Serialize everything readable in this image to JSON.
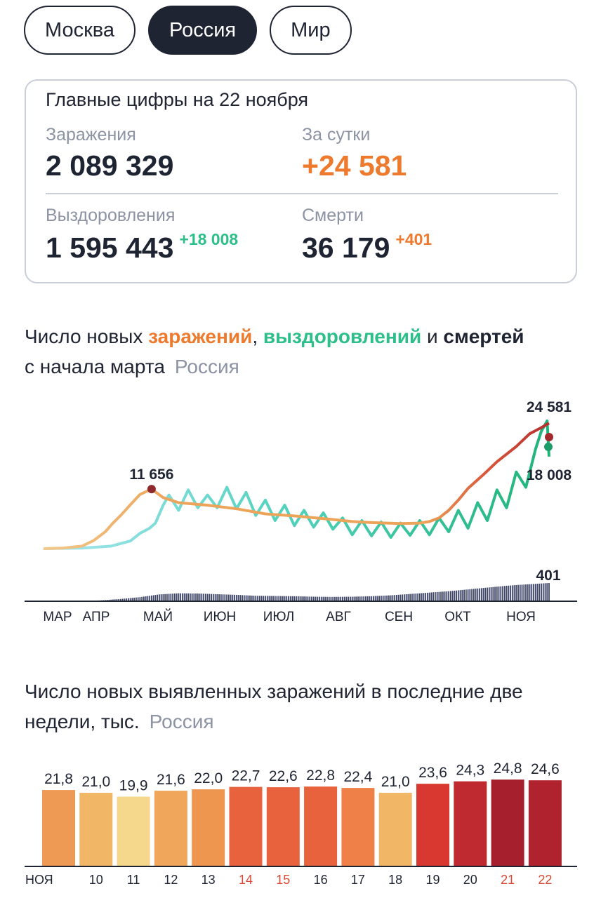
{
  "tabs": [
    {
      "label": "Москва",
      "active": false
    },
    {
      "label": "Россия",
      "active": true
    },
    {
      "label": "Мир",
      "active": false
    }
  ],
  "summary": {
    "title": "Главные цифры на 22 ноября",
    "infections_label": "Заражения",
    "infections_value": "2 089 329",
    "daily_label": "За сутки",
    "daily_value": "+24 581",
    "recoveries_label": "Выздоровления",
    "recoveries_value": "1 595 443",
    "recoveries_delta": "+18 008",
    "deaths_label": "Смерти",
    "deaths_value": "36 179",
    "deaths_delta": "+401"
  },
  "colors": {
    "orange": "#ee7a2e",
    "green": "#2dbf8a",
    "dark": "#1f2433",
    "grey": "#8c93a3"
  },
  "chart1_heading": {
    "part1": "Число новых ",
    "infections_word": "заражений",
    "comma": ", ",
    "recoveries_word": "выздоровлений",
    "and": " и ",
    "deaths_word": "смертей",
    "line2": "с начала марта",
    "region": "Россия"
  },
  "chart2_heading": {
    "line1": "Число новых выявленных заражений в последние две",
    "line2": "недели, тыс.",
    "region": "Россия"
  },
  "chart_data": [
    {
      "type": "line",
      "months": [
        "МАР",
        "АПР",
        "МАЙ",
        "ИЮН",
        "ИЮЛ",
        "АВГ",
        "СЕН",
        "ОКТ",
        "НОЯ"
      ],
      "annotations": {
        "peak_infections": "11 656",
        "last_infections": "24 581",
        "last_recoveries": "18 008",
        "last_deaths": "401"
      },
      "series": [
        {
          "key": "infections",
          "color": "#ee7a2e",
          "values": [
            [
              0,
              0
            ],
            [
              10,
              100
            ],
            [
              20,
              500
            ],
            [
              26,
              1600
            ],
            [
              32,
              3300
            ],
            [
              36,
              5000
            ],
            [
              40,
              6500
            ],
            [
              46,
              9000
            ],
            [
              50,
              10600
            ],
            [
              56,
              11656
            ],
            [
              62,
              10000
            ],
            [
              70,
              9000
            ],
            [
              85,
              8500
            ],
            [
              100,
              7800
            ],
            [
              115,
              6800
            ],
            [
              130,
              6400
            ],
            [
              150,
              5700
            ],
            [
              160,
              5300
            ],
            [
              170,
              5100
            ],
            [
              185,
              4900
            ],
            [
              195,
              5000
            ],
            [
              200,
              5300
            ],
            [
              205,
              6000
            ],
            [
              210,
              7500
            ],
            [
              215,
              9500
            ],
            [
              220,
              11800
            ],
            [
              228,
              14500
            ],
            [
              235,
              17000
            ],
            [
              245,
              20000
            ],
            [
              252,
              22500
            ],
            [
              258,
              23700
            ],
            [
              262,
              24581
            ]
          ]
        },
        {
          "key": "recoveries",
          "color": "#2dbf8a",
          "values": [
            [
              0,
              0
            ],
            [
              20,
              100
            ],
            [
              35,
              500
            ],
            [
              45,
              1500
            ],
            [
              50,
              3000
            ],
            [
              55,
              4000
            ],
            [
              58,
              5000
            ],
            [
              62,
              8500
            ],
            [
              65,
              10500
            ],
            [
              70,
              7500
            ],
            [
              75,
              11500
            ],
            [
              80,
              8000
            ],
            [
              85,
              10500
            ],
            [
              90,
              8000
            ],
            [
              95,
              12000
            ],
            [
              100,
              7800
            ],
            [
              105,
              11000
            ],
            [
              110,
              6500
            ],
            [
              115,
              9500
            ],
            [
              120,
              5500
            ],
            [
              125,
              8500
            ],
            [
              130,
              4500
            ],
            [
              135,
              7500
            ],
            [
              140,
              4200
            ],
            [
              145,
              7000
            ],
            [
              150,
              3800
            ],
            [
              155,
              6000
            ],
            [
              160,
              2700
            ],
            [
              165,
              5500
            ],
            [
              170,
              2500
            ],
            [
              175,
              5200
            ],
            [
              180,
              2200
            ],
            [
              185,
              5000
            ],
            [
              190,
              2600
            ],
            [
              195,
              5500
            ],
            [
              200,
              2700
            ],
            [
              205,
              6000
            ],
            [
              210,
              3300
            ],
            [
              215,
              7500
            ],
            [
              220,
              4000
            ],
            [
              225,
              9000
            ],
            [
              230,
              5500
            ],
            [
              235,
              11500
            ],
            [
              240,
              8000
            ],
            [
              245,
              15000
            ],
            [
              250,
              12000
            ],
            [
              255,
              19500
            ],
            [
              258,
              23000
            ],
            [
              261,
              25000
            ],
            [
              262,
              18008
            ]
          ]
        },
        {
          "key": "deaths",
          "color": "#1f2433",
          "values": [
            [
              0,
              0
            ],
            [
              20,
              0
            ],
            [
              30,
              20
            ],
            [
              40,
              50
            ],
            [
              50,
              90
            ],
            [
              60,
              150
            ],
            [
              70,
              175
            ],
            [
              80,
              170
            ],
            [
              90,
              155
            ],
            [
              100,
              140
            ],
            [
              110,
              120
            ],
            [
              120,
              115
            ],
            [
              130,
              110
            ],
            [
              140,
              100
            ],
            [
              150,
              95
            ],
            [
              160,
              100
            ],
            [
              170,
              110
            ],
            [
              180,
              130
            ],
            [
              190,
              160
            ],
            [
              200,
              190
            ],
            [
              210,
              220
            ],
            [
              220,
              260
            ],
            [
              230,
              300
            ],
            [
              240,
              340
            ],
            [
              250,
              370
            ],
            [
              262,
              401
            ]
          ]
        }
      ]
    },
    {
      "type": "bar",
      "categories": [
        "НОЯ",
        "10",
        "11",
        "12",
        "13",
        "14",
        "15",
        "16",
        "17",
        "18",
        "19",
        "20",
        "21",
        "22"
      ],
      "values": [
        21.8,
        21.0,
        19.9,
        21.6,
        22.0,
        22.7,
        22.6,
        22.8,
        22.4,
        21.0,
        23.6,
        24.3,
        24.8,
        24.6
      ],
      "labels": [
        "21,8",
        "21,0",
        "19,9",
        "21,6",
        "22,0",
        "22,7",
        "22,6",
        "22,8",
        "22,4",
        "21,0",
        "23,6",
        "24,3",
        "24,8",
        "24,6"
      ],
      "weekend": [
        false,
        false,
        false,
        false,
        false,
        true,
        true,
        false,
        false,
        false,
        false,
        false,
        true,
        true
      ],
      "bar_colors": [
        "#ee9a55",
        "#f2b766",
        "#f5d88c",
        "#f0a75c",
        "#ee9550",
        "#e8623e",
        "#e8623e",
        "#e8623e",
        "#ee8048",
        "#f2b766",
        "#d8382f",
        "#bf2a31",
        "#a51f2d",
        "#b0222e"
      ],
      "label_color": "#1f2433",
      "weekend_label_color": "#d84a34"
    }
  ]
}
